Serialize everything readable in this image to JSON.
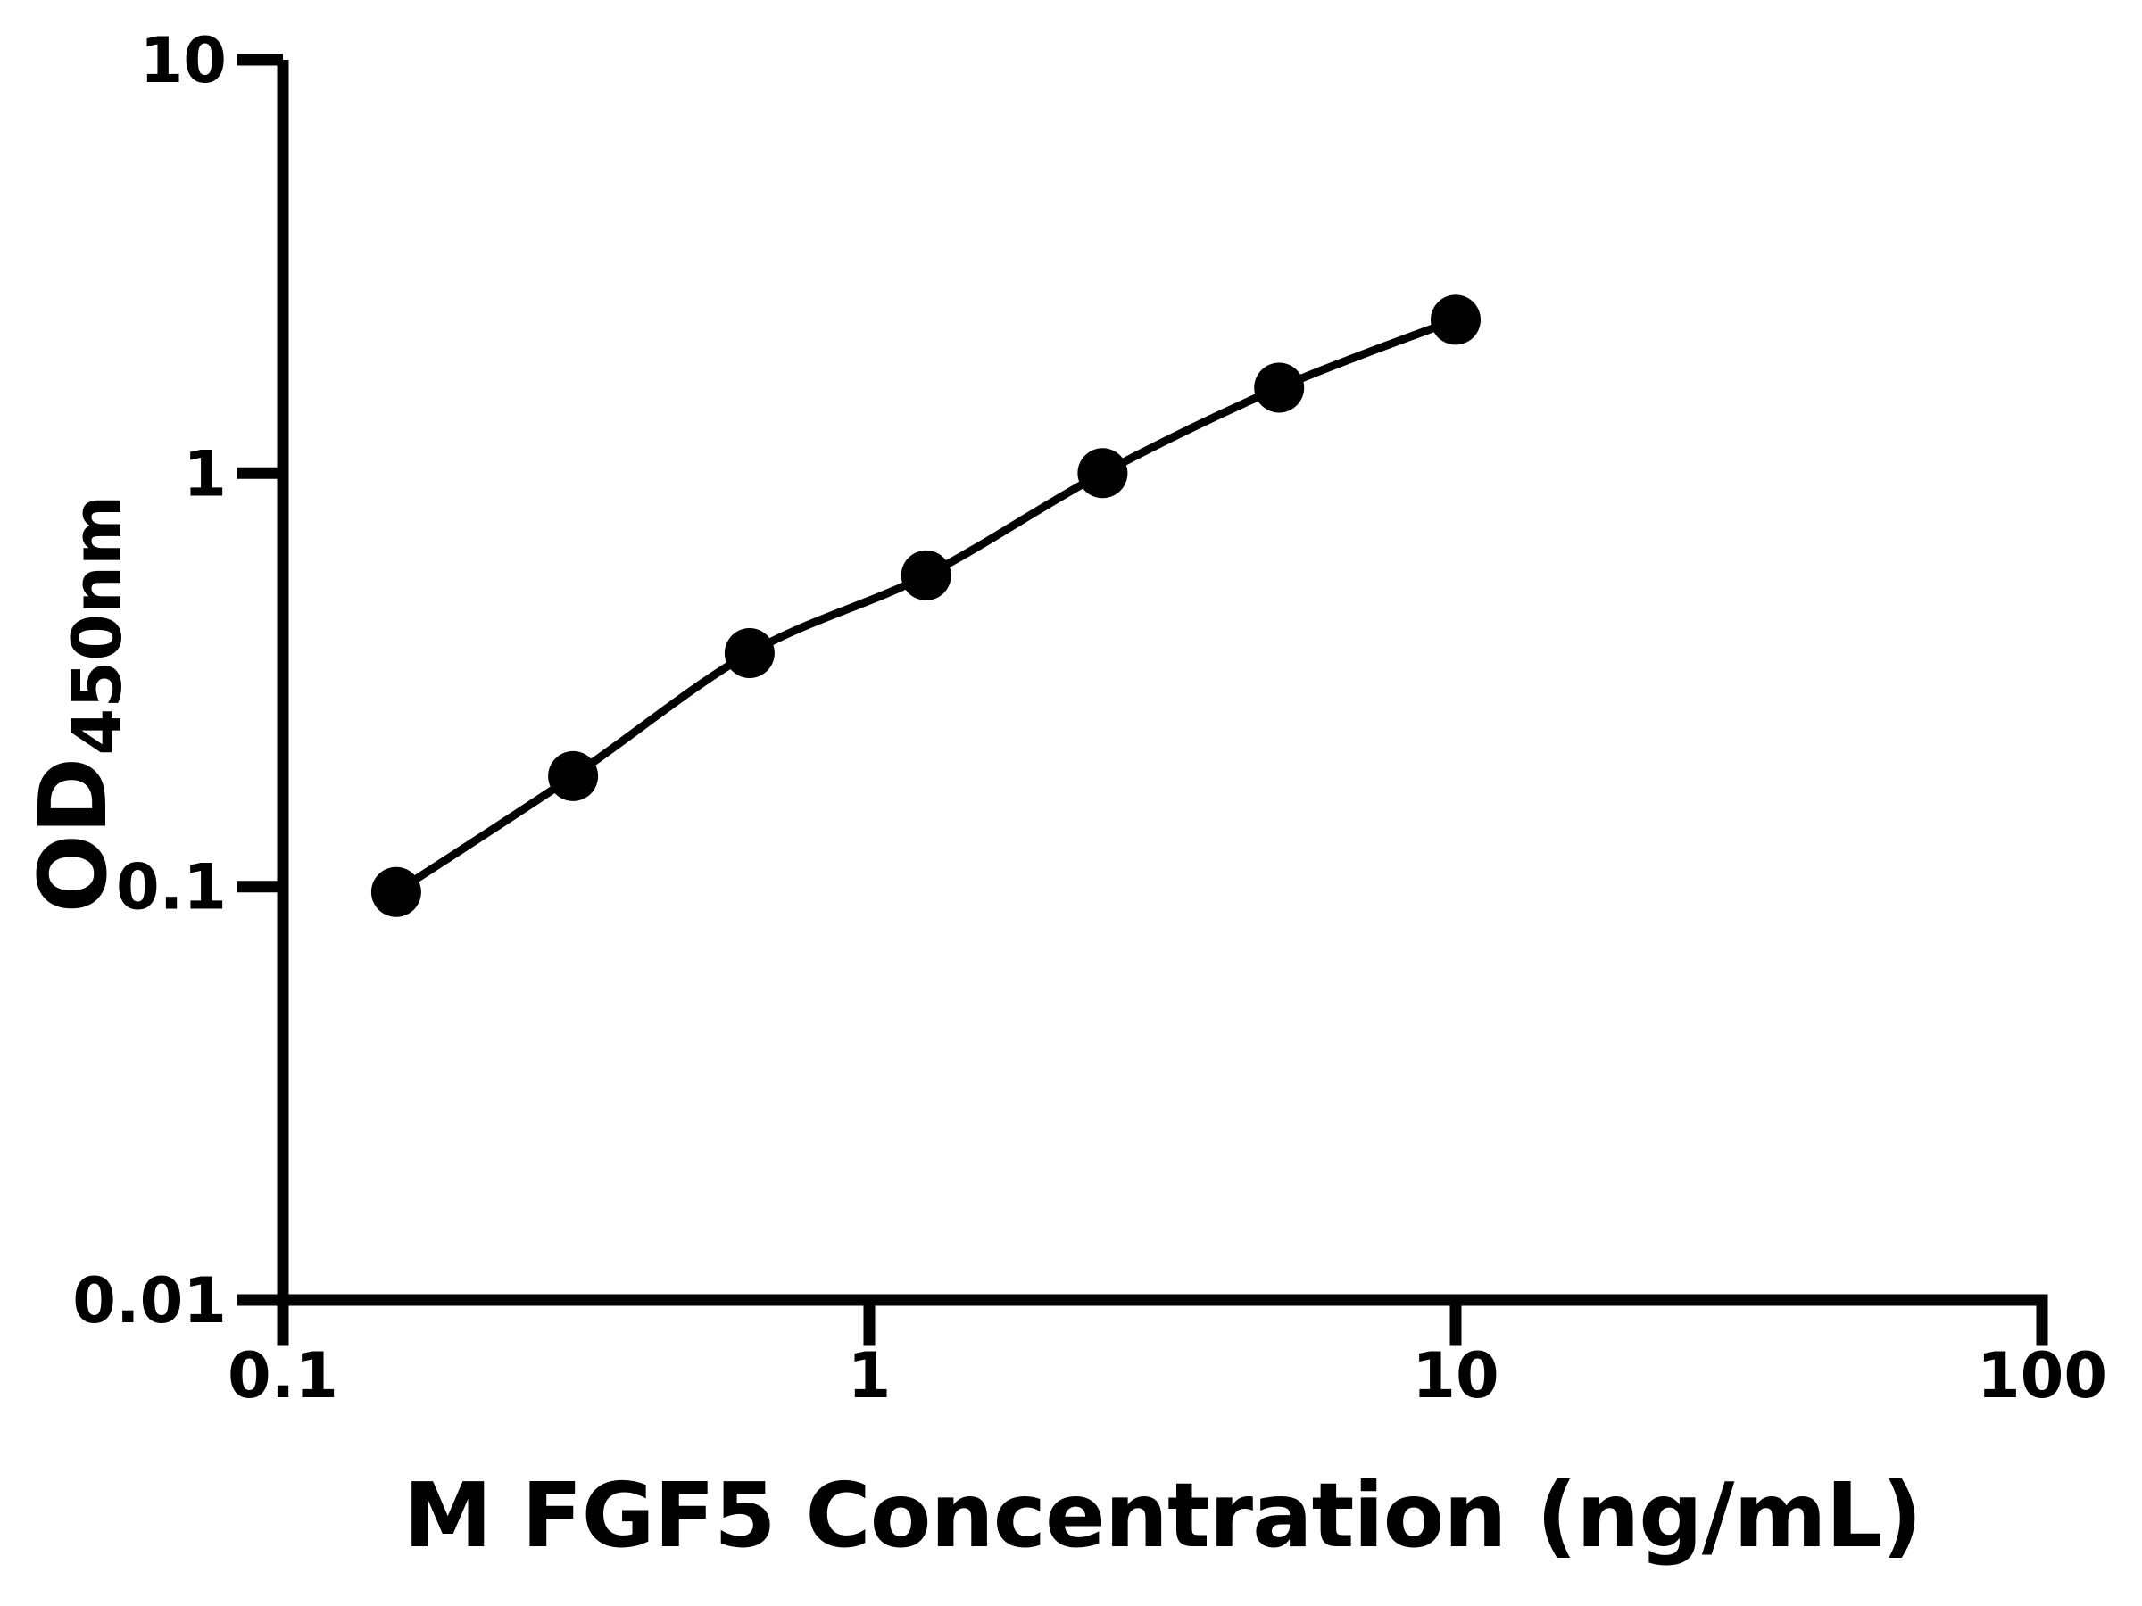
{
  "figure": {
    "background": "#ffffff",
    "ink_color": "#000000"
  },
  "chart_data": {
    "type": "scatter",
    "title": "",
    "xlabel": "M FGF5 Concentration (ng/mL)",
    "ylabel": "OD",
    "ylabel_subscript": "450nm",
    "x_scale": "log10",
    "y_scale": "log10",
    "xlim": [
      0.1,
      100
    ],
    "ylim": [
      0.01,
      10
    ],
    "x_tick_labels": [
      "0.1",
      "1",
      "10",
      "100"
    ],
    "x_tick_values": [
      0.1,
      1,
      10,
      100
    ],
    "y_tick_labels": [
      "0.01",
      "0.1",
      "1",
      "10"
    ],
    "y_tick_values": [
      0.01,
      0.1,
      1,
      10
    ],
    "grid": false,
    "legend": false,
    "series": [
      {
        "marker": "circle",
        "line": "smooth",
        "color": "#000000",
        "x": [
          0.156,
          0.3125,
          0.625,
          1.25,
          2.5,
          5,
          10
        ],
        "y": [
          0.097,
          0.185,
          0.367,
          0.566,
          1.0,
          1.61,
          2.35
        ]
      }
    ]
  }
}
